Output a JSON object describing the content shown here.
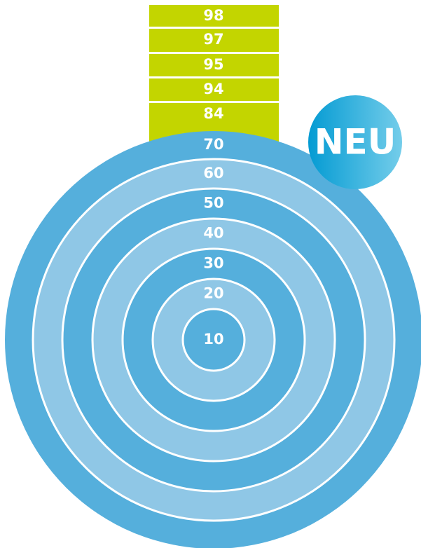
{
  "bars": [
    98,
    97,
    95,
    94,
    84
  ],
  "rings": [
    10,
    20,
    30,
    40,
    50,
    60,
    70
  ],
  "badge": "NEU"
}
